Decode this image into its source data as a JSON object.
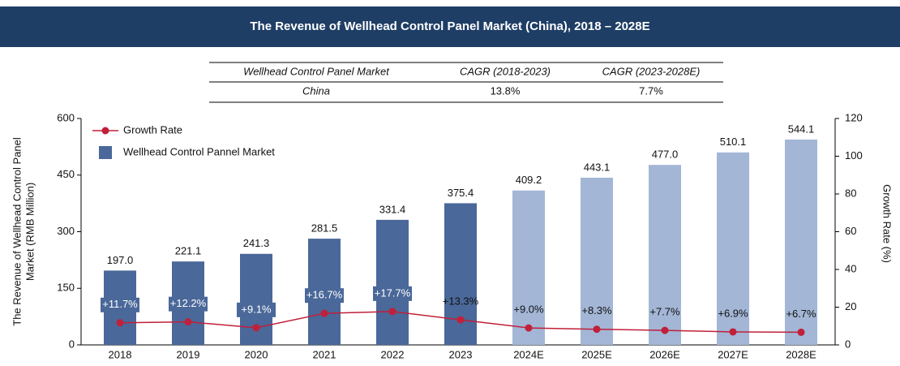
{
  "chart_data": {
    "type": "bar",
    "title": "The Revenue of Wellhead Control Panel Market (China), 2018 – 2028E",
    "table": {
      "header": [
        "Wellhead Control Panel Market",
        "CAGR (2018-2023)",
        "CAGR (2023-2028E)"
      ],
      "rows": [
        [
          "China",
          "13.8%",
          "7.7%"
        ]
      ]
    },
    "y_label": [
      "The Revenue of Wellhead Control Panel",
      "Market (RMB Million)"
    ],
    "y2_label": "Growth Rate (%)",
    "categories": [
      "2018",
      "2019",
      "2020",
      "2021",
      "2022",
      "2023",
      "2024E",
      "2025E",
      "2026E",
      "2027E",
      "2028E"
    ],
    "series": [
      {
        "name": "Wellhead Control Pannel Market",
        "type": "bar",
        "color": "#4a6899",
        "colors": [
          "#4a6899",
          "#4a6899",
          "#4a6899",
          "#4a6899",
          "#4a6899",
          "#4a6899",
          "#a3b6d6",
          "#a3b6d6",
          "#a3b6d6",
          "#a3b6d6",
          "#a3b6d6"
        ],
        "values": [
          197.0,
          221.1,
          241.3,
          281.5,
          331.4,
          375.4,
          409.2,
          443.1,
          477.0,
          510.1,
          544.1
        ],
        "value_labels": [
          "197.0",
          "221.1",
          "241.3",
          "281.5",
          "331.4",
          "375.4",
          "409.2",
          "443.1",
          "477.0",
          "510.1",
          "544.1"
        ]
      },
      {
        "name": "Growth Rate",
        "type": "line",
        "axis": "y2",
        "color": "#c0203a",
        "values": [
          11.7,
          12.2,
          9.1,
          16.7,
          17.7,
          13.3,
          9.0,
          8.3,
          7.7,
          6.9,
          6.7
        ],
        "value_labels": [
          "+11.7%",
          "+12.2%",
          "+9.1%",
          "+16.7%",
          "+17.7%",
          "+13.3%",
          "+9.0%",
          "+8.3%",
          "+7.7%",
          "+6.9%",
          "+6.7%"
        ]
      }
    ],
    "ylim": [
      0,
      600
    ],
    "yticks": [
      0,
      150,
      300,
      450,
      600
    ],
    "y2lim": [
      0,
      120
    ],
    "y2ticks": [
      0,
      20,
      40,
      60,
      80,
      100,
      120
    ],
    "legend": "upper left"
  }
}
